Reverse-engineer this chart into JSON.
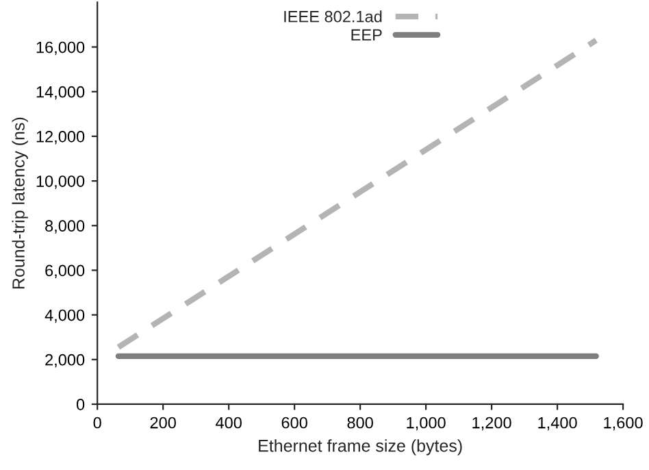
{
  "chart_data": {
    "type": "line",
    "xlabel": "Ethernet frame size (bytes)",
    "ylabel": "Round-trip latency (ns)",
    "x": [
      64,
      1518
    ],
    "xlim": [
      0,
      1600
    ],
    "ylim": [
      0,
      18000
    ],
    "xticks": [
      0,
      200,
      400,
      600,
      {
        "value": 800,
        "label": "800"
      },
      {
        "value": 1000,
        "label": "1,000"
      },
      {
        "value": 1200,
        "label": "1,200"
      },
      {
        "value": 1400,
        "label": "1,400"
      },
      {
        "value": 1600,
        "label": "1,600"
      }
    ],
    "yticks": [
      0,
      {
        "value": 2000,
        "label": "2,000"
      },
      {
        "value": 4000,
        "label": "4,000"
      },
      {
        "value": 6000,
        "label": "6,000"
      },
      {
        "value": 8000,
        "label": "8,000"
      },
      {
        "value": 10000,
        "label": "10,000"
      },
      {
        "value": 12000,
        "label": "12,000"
      },
      {
        "value": 14000,
        "label": "14,000"
      },
      {
        "value": 16000,
        "label": "16,000"
      }
    ],
    "series": [
      {
        "name": "IEEE 802.1ad",
        "color": "#b4b4b4",
        "values": [
          2550,
          16300
        ],
        "line_style": "dashed"
      },
      {
        "name": "EEP",
        "color": "#7f7f7f",
        "values": [
          2150,
          2150
        ],
        "line_style": "solid"
      }
    ],
    "legend": "top",
    "grid": false,
    "marker": "none"
  }
}
